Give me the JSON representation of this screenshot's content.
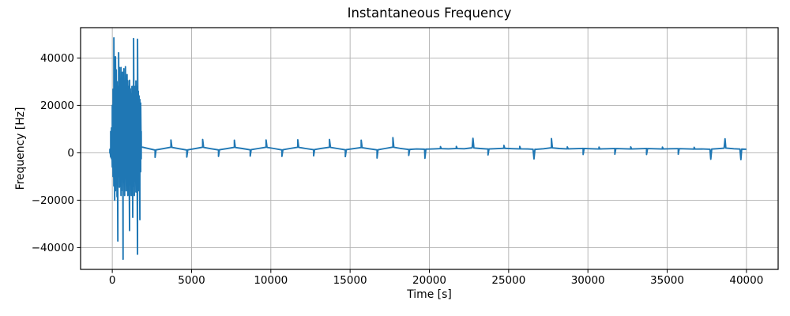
{
  "chart_data": {
    "type": "line",
    "title": "Instantaneous Frequency",
    "xlabel": "Time [s]",
    "ylabel": "Frequency [Hz]",
    "xlim": [
      -2000,
      42000
    ],
    "ylim": [
      -49200,
      52800
    ],
    "xticks": [
      0,
      5000,
      10000,
      15000,
      20000,
      25000,
      30000,
      35000,
      40000
    ],
    "xtick_labels": [
      "0",
      "5000",
      "10000",
      "15000",
      "20000",
      "25000",
      "30000",
      "35000",
      "40000"
    ],
    "yticks": [
      -40000,
      -20000,
      0,
      20000,
      40000
    ],
    "ytick_labels": [
      "−40000",
      "−20000",
      "0",
      "20000",
      "40000"
    ],
    "grid": true,
    "legend": "none",
    "line_color": "#1f77b4",
    "grid_color": "#b0b0b0",
    "spine_color": "#000000",
    "background_color": "#ffffff",
    "series_name": "instantaneous-frequency",
    "burst_envelope": [
      [
        -150,
        -300,
        1500
      ],
      [
        -100,
        -1800,
        9000
      ],
      [
        -50,
        -2500,
        10500
      ],
      [
        0,
        -6000,
        20000
      ],
      [
        50,
        -10000,
        26800
      ],
      [
        100,
        -14000,
        48500
      ],
      [
        150,
        -20000,
        34000
      ],
      [
        200,
        -16000,
        40500
      ],
      [
        250,
        -12000,
        35000
      ],
      [
        300,
        -18500,
        30000
      ],
      [
        350,
        -37200,
        28000
      ],
      [
        400,
        -10000,
        42200
      ],
      [
        450,
        -14500,
        36000
      ],
      [
        500,
        -12000,
        31000
      ],
      [
        550,
        -18000,
        36000
      ],
      [
        600,
        -10000,
        30000
      ],
      [
        650,
        -16000,
        34000
      ],
      [
        680,
        -44900,
        26000
      ],
      [
        730,
        -12000,
        35500
      ],
      [
        780,
        -18000,
        30000
      ],
      [
        830,
        -10000,
        36300
      ],
      [
        880,
        -16000,
        28000
      ],
      [
        930,
        -12500,
        33000
      ],
      [
        980,
        -18000,
        30400
      ],
      [
        1030,
        -10000,
        28000
      ],
      [
        1090,
        -32800,
        30600
      ],
      [
        1140,
        -12000,
        27000
      ],
      [
        1190,
        -18000,
        25000
      ],
      [
        1240,
        -10000,
        28000
      ],
      [
        1290,
        -27200,
        28000
      ],
      [
        1343,
        -14000,
        48200
      ],
      [
        1390,
        -18000,
        26000
      ],
      [
        1440,
        -10000,
        28000
      ],
      [
        1490,
        -16500,
        30300
      ],
      [
        1540,
        -12000,
        28000
      ],
      [
        1592,
        -42800,
        47900
      ],
      [
        1640,
        -16000,
        26000
      ],
      [
        1690,
        -12000,
        24000
      ],
      [
        1740,
        -28200,
        22500
      ],
      [
        1790,
        -8000,
        21000
      ],
      [
        1825,
        -2500,
        9000
      ]
    ],
    "tail_baseline": [
      [
        1830,
        2500
      ],
      [
        2200,
        1900
      ],
      [
        2700,
        1150
      ],
      [
        3200,
        1750
      ],
      [
        3700,
        2350
      ],
      [
        4200,
        1750
      ],
      [
        4700,
        1150
      ],
      [
        5200,
        1750
      ],
      [
        5700,
        2350
      ],
      [
        6200,
        1750
      ],
      [
        6700,
        1200
      ],
      [
        7200,
        1750
      ],
      [
        7700,
        2300
      ],
      [
        8200,
        1800
      ],
      [
        8700,
        1250
      ],
      [
        9200,
        1800
      ],
      [
        9700,
        2350
      ],
      [
        10200,
        1800
      ],
      [
        10700,
        1200
      ],
      [
        11200,
        1800
      ],
      [
        11700,
        2350
      ],
      [
        12200,
        1800
      ],
      [
        12700,
        1300
      ],
      [
        13200,
        1850
      ],
      [
        13700,
        2350
      ],
      [
        14200,
        1800
      ],
      [
        14700,
        1250
      ],
      [
        15200,
        1750
      ],
      [
        15700,
        2200
      ],
      [
        16200,
        1700
      ],
      [
        16700,
        1200
      ],
      [
        17200,
        1800
      ],
      [
        17700,
        2400
      ],
      [
        18200,
        1800
      ],
      [
        18700,
        1400
      ],
      [
        19200,
        1600
      ],
      [
        19700,
        1500
      ],
      [
        20200,
        1600
      ],
      [
        20700,
        1750
      ],
      [
        21200,
        1650
      ],
      [
        21700,
        1800
      ],
      [
        22200,
        1700
      ],
      [
        22700,
        2100
      ],
      [
        23200,
        1800
      ],
      [
        23700,
        1600
      ],
      [
        24200,
        1750
      ],
      [
        24700,
        1900
      ],
      [
        25200,
        1750
      ],
      [
        25700,
        1650
      ],
      [
        26200,
        1600
      ],
      [
        26700,
        1450
      ],
      [
        27200,
        1700
      ],
      [
        27700,
        2100
      ],
      [
        28200,
        1800
      ],
      [
        28700,
        1650
      ],
      [
        29200,
        1750
      ],
      [
        29700,
        1850
      ],
      [
        30200,
        1700
      ],
      [
        30700,
        1600
      ],
      [
        31200,
        1700
      ],
      [
        31700,
        1800
      ],
      [
        32200,
        1700
      ],
      [
        32700,
        1600
      ],
      [
        33200,
        1700
      ],
      [
        33700,
        1800
      ],
      [
        34200,
        1700
      ],
      [
        34700,
        1600
      ],
      [
        35200,
        1700
      ],
      [
        35700,
        1750
      ],
      [
        36200,
        1650
      ],
      [
        36700,
        1550
      ],
      [
        37200,
        1600
      ],
      [
        37700,
        1500
      ],
      [
        38200,
        1750
      ],
      [
        38700,
        2000
      ],
      [
        39200,
        1700
      ],
      [
        39700,
        1550
      ],
      [
        40000,
        1500
      ]
    ],
    "tail_spikes": [
      [
        2700,
        -1900
      ],
      [
        3700,
        5400
      ],
      [
        4700,
        -1800
      ],
      [
        5700,
        5600
      ],
      [
        6700,
        -1500
      ],
      [
        7700,
        5300
      ],
      [
        8700,
        -1400
      ],
      [
        9700,
        5400
      ],
      [
        10700,
        -1500
      ],
      [
        11700,
        5500
      ],
      [
        12700,
        -1300
      ],
      [
        13700,
        5600
      ],
      [
        14700,
        -1600
      ],
      [
        15700,
        5300
      ],
      [
        16700,
        -2200
      ],
      [
        17700,
        6400
      ],
      [
        18700,
        -1100
      ],
      [
        19720,
        -2300
      ],
      [
        20700,
        2600
      ],
      [
        21700,
        2700
      ],
      [
        22750,
        6100
      ],
      [
        23700,
        -900
      ],
      [
        24700,
        3100
      ],
      [
        25700,
        2700
      ],
      [
        26600,
        -2600
      ],
      [
        27700,
        6000
      ],
      [
        28700,
        2500
      ],
      [
        29700,
        -700
      ],
      [
        30700,
        2400
      ],
      [
        31700,
        -600
      ],
      [
        32700,
        2500
      ],
      [
        33700,
        -700
      ],
      [
        34700,
        2400
      ],
      [
        35700,
        -600
      ],
      [
        36700,
        2300
      ],
      [
        37750,
        -2700
      ],
      [
        38650,
        5900
      ],
      [
        39650,
        -2900
      ]
    ]
  }
}
